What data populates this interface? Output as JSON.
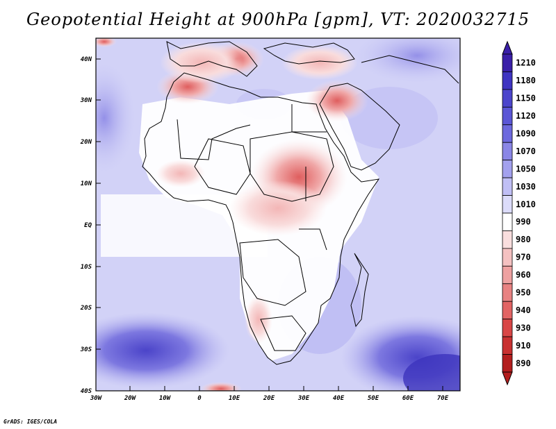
{
  "title": "Geopotential Height at 900hPa [gpm], VT: 2020032715",
  "credit": "GrADS: IGES/COLA",
  "map": {
    "lat_labels": [
      "40N",
      "30N",
      "20N",
      "10N",
      "EQ",
      "10S",
      "20S",
      "30S",
      "40S"
    ],
    "lon_labels": [
      "30W",
      "20W",
      "10W",
      "0",
      "10E",
      "20E",
      "30E",
      "40E",
      "50E",
      "60E",
      "70E"
    ]
  },
  "colorbar": {
    "levels": [
      "1210",
      "1180",
      "1150",
      "1120",
      "1090",
      "1070",
      "1050",
      "1030",
      "1010",
      "990",
      "980",
      "970",
      "960",
      "950",
      "940",
      "930",
      "910",
      "890"
    ],
    "colors": [
      "#3a1fa8",
      "#3f34c2",
      "#4c45cc",
      "#5b56d6",
      "#6d69de",
      "#8a86e6",
      "#a3a1ee",
      "#c0bff5",
      "#dcdcfa",
      "#ffffff",
      "#f9dede",
      "#f4c1c1",
      "#eea1a1",
      "#e88282",
      "#e26464",
      "#d94646",
      "#c93131",
      "#b31e1e"
    ]
  }
}
